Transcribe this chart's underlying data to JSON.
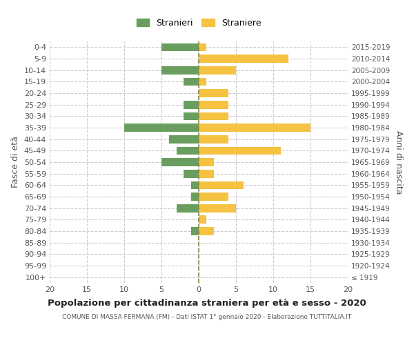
{
  "age_groups": [
    "100+",
    "95-99",
    "90-94",
    "85-89",
    "80-84",
    "75-79",
    "70-74",
    "65-69",
    "60-64",
    "55-59",
    "50-54",
    "45-49",
    "40-44",
    "35-39",
    "30-34",
    "25-29",
    "20-24",
    "15-19",
    "10-14",
    "5-9",
    "0-4"
  ],
  "birth_years": [
    "≤ 1919",
    "1920-1924",
    "1925-1929",
    "1930-1934",
    "1935-1939",
    "1940-1944",
    "1945-1949",
    "1950-1954",
    "1955-1959",
    "1960-1964",
    "1965-1969",
    "1970-1974",
    "1975-1979",
    "1980-1984",
    "1985-1989",
    "1990-1994",
    "1995-1999",
    "2000-2004",
    "2005-2009",
    "2010-2014",
    "2015-2019"
  ],
  "males": [
    0,
    0,
    0,
    0,
    1,
    0,
    3,
    1,
    1,
    2,
    5,
    3,
    4,
    10,
    2,
    2,
    0,
    2,
    5,
    0,
    5
  ],
  "females": [
    0,
    0,
    0,
    0,
    2,
    1,
    5,
    4,
    6,
    2,
    2,
    11,
    4,
    15,
    4,
    4,
    4,
    1,
    5,
    12,
    1
  ],
  "male_color": "#6a9e5e",
  "female_color": "#f5c242",
  "background_color": "#ffffff",
  "grid_color": "#cccccc",
  "title": "Popolazione per cittadinanza straniera per età e sesso - 2020",
  "subtitle": "COMUNE DI MASSA FERMANA (FM) - Dati ISTAT 1° gennaio 2020 - Elaborazione TUTTITALIA.IT",
  "ylabel_left": "Fasce di età",
  "ylabel_right": "Anni di nascita",
  "legend_male": "Stranieri",
  "legend_female": "Straniere",
  "xlim": 20,
  "center_line_color": "#888844"
}
